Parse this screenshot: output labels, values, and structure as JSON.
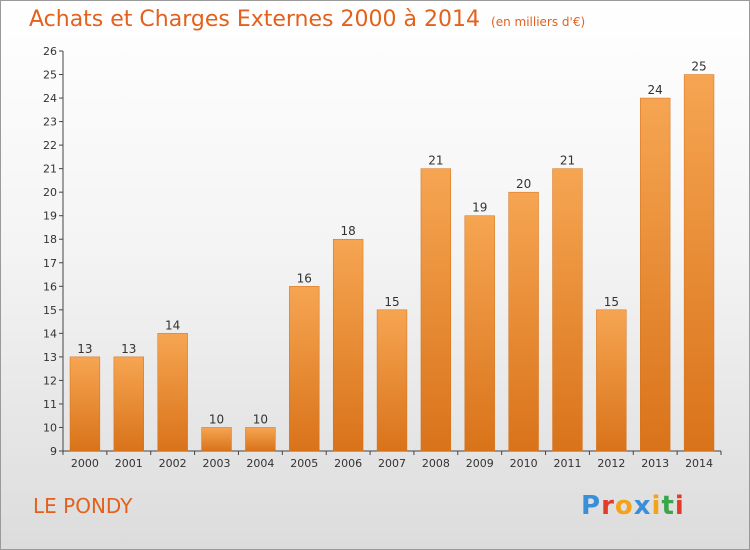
{
  "title": "Achats et Charges Externes 2000 à 2014",
  "unit": "(en milliers d'€)",
  "place": "LE PONDY",
  "logo": {
    "text": "Proxiti",
    "colors": [
      "#3a8fd8",
      "#e23b2a",
      "#f2a31b",
      "#3a8fd8",
      "#f2a31b",
      "#3aa64b",
      "#e23b2a"
    ]
  },
  "colors": {
    "bar": "#f08a2a",
    "bar_top": "#f6a552",
    "bar_bottom": "#d9731a",
    "title": "#e3611c"
  },
  "chart_data": {
    "type": "bar",
    "categories": [
      "2000",
      "2001",
      "2002",
      "2003",
      "2004",
      "2005",
      "2006",
      "2007",
      "2008",
      "2009",
      "2010",
      "2011",
      "2012",
      "2013",
      "2014"
    ],
    "values": [
      13,
      13,
      14,
      10,
      10,
      16,
      18,
      15,
      21,
      19,
      20,
      21,
      15,
      24,
      25
    ],
    "title": "Achats et Charges Externes 2000 à 2014",
    "ylim": [
      9,
      26
    ],
    "yticks": [
      9,
      10,
      11,
      12,
      13,
      14,
      15,
      16,
      17,
      18,
      19,
      20,
      21,
      22,
      23,
      24,
      25,
      26
    ],
    "grid": false
  }
}
